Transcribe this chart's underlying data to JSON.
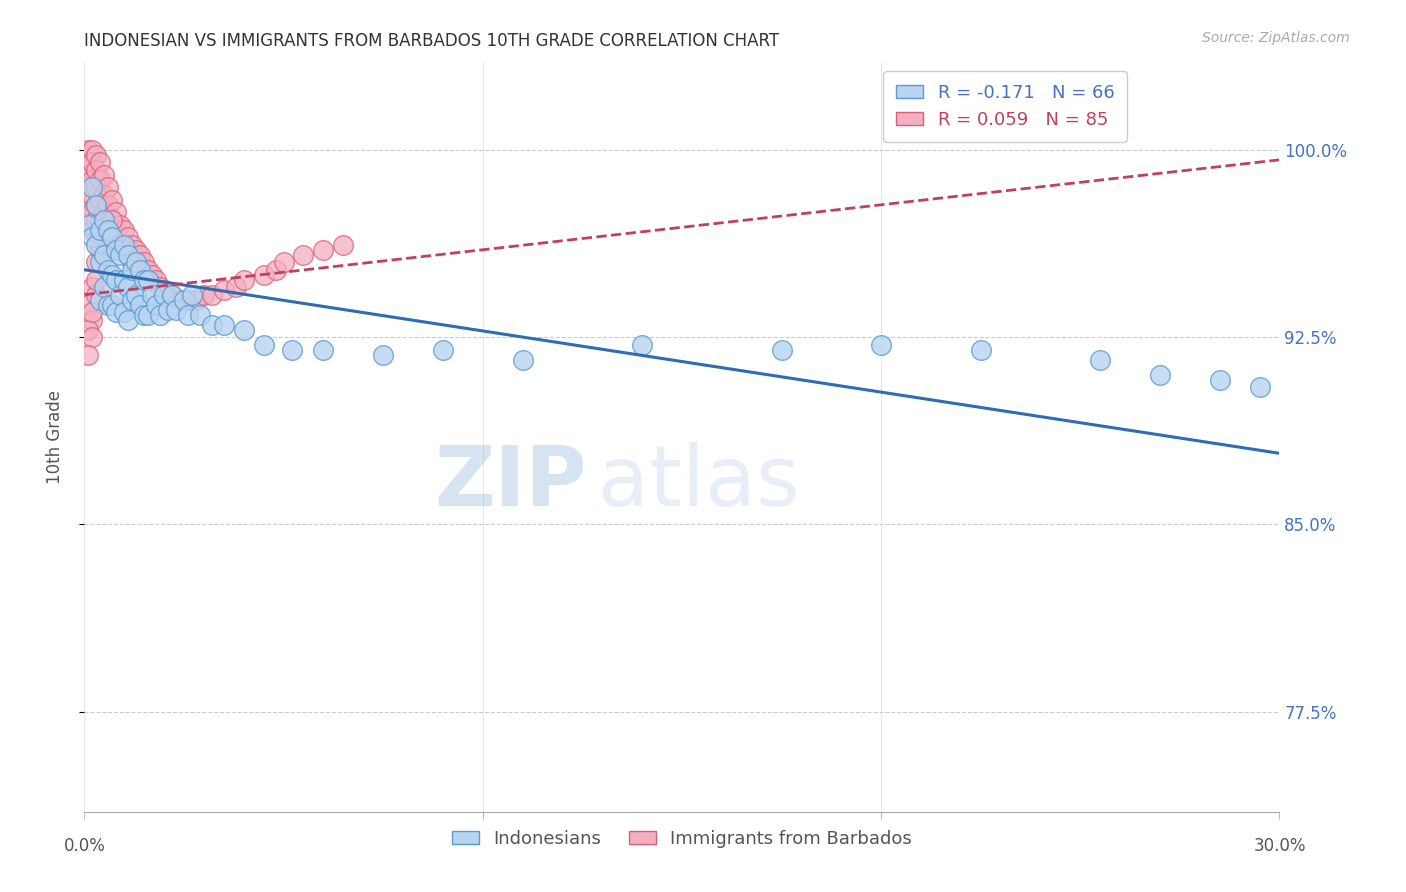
{
  "title": "INDONESIAN VS IMMIGRANTS FROM BARBADOS 10TH GRADE CORRELATION CHART",
  "source": "Source: ZipAtlas.com",
  "ylabel": "10th Grade",
  "yticks": [
    0.775,
    0.85,
    0.925,
    1.0
  ],
  "ytick_labels": [
    "77.5%",
    "85.0%",
    "92.5%",
    "100.0%"
  ],
  "xlim": [
    0.0,
    0.3
  ],
  "ylim": [
    0.735,
    1.035
  ],
  "watermark_top": "ZIP",
  "watermark_bot": "atlas",
  "legend_entries": [
    {
      "label": "R = -0.171   N = 66",
      "color": "#b8d4f0",
      "edge": "#5b9bd5"
    },
    {
      "label": "R = 0.059   N = 85",
      "color": "#f4afc0",
      "edge": "#d95f7a"
    }
  ],
  "legend_labels_bottom": [
    "Indonesians",
    "Immigrants from Barbados"
  ],
  "indonesians": {
    "face_color": "#b8d4f0",
    "edge_color": "#5b9bd5",
    "trend_color": "#2e6db4",
    "trend_intercept": 0.952,
    "trend_slope": -0.245,
    "x": [
      0.001,
      0.002,
      0.002,
      0.003,
      0.003,
      0.004,
      0.004,
      0.004,
      0.005,
      0.005,
      0.005,
      0.006,
      0.006,
      0.006,
      0.007,
      0.007,
      0.007,
      0.008,
      0.008,
      0.008,
      0.009,
      0.009,
      0.01,
      0.01,
      0.01,
      0.011,
      0.011,
      0.011,
      0.012,
      0.012,
      0.013,
      0.013,
      0.014,
      0.014,
      0.015,
      0.015,
      0.016,
      0.016,
      0.017,
      0.018,
      0.019,
      0.02,
      0.021,
      0.022,
      0.023,
      0.025,
      0.026,
      0.027,
      0.029,
      0.032,
      0.035,
      0.04,
      0.045,
      0.052,
      0.06,
      0.075,
      0.09,
      0.11,
      0.14,
      0.175,
      0.2,
      0.225,
      0.255,
      0.27,
      0.285,
      0.295
    ],
    "y": [
      0.97,
      0.985,
      0.965,
      0.978,
      0.962,
      0.968,
      0.955,
      0.94,
      0.972,
      0.958,
      0.945,
      0.968,
      0.952,
      0.938,
      0.965,
      0.95,
      0.938,
      0.96,
      0.948,
      0.935,
      0.958,
      0.942,
      0.962,
      0.948,
      0.935,
      0.958,
      0.945,
      0.932,
      0.952,
      0.94,
      0.955,
      0.942,
      0.952,
      0.938,
      0.948,
      0.934,
      0.948,
      0.934,
      0.942,
      0.938,
      0.934,
      0.942,
      0.936,
      0.942,
      0.936,
      0.94,
      0.934,
      0.942,
      0.934,
      0.93,
      0.93,
      0.928,
      0.922,
      0.92,
      0.92,
      0.918,
      0.92,
      0.916,
      0.922,
      0.92,
      0.922,
      0.92,
      0.916,
      0.91,
      0.908,
      0.905
    ]
  },
  "barbados": {
    "face_color": "#f4afc0",
    "edge_color": "#d95f7a",
    "trend_color": "#c04060",
    "trend_intercept": 0.942,
    "trend_slope": 0.18,
    "x": [
      0.001,
      0.001,
      0.001,
      0.001,
      0.001,
      0.001,
      0.001,
      0.001,
      0.002,
      0.002,
      0.002,
      0.002,
      0.002,
      0.002,
      0.003,
      0.003,
      0.003,
      0.003,
      0.003,
      0.004,
      0.004,
      0.004,
      0.004,
      0.005,
      0.005,
      0.005,
      0.005,
      0.006,
      0.006,
      0.006,
      0.007,
      0.007,
      0.007,
      0.008,
      0.008,
      0.009,
      0.009,
      0.01,
      0.01,
      0.011,
      0.011,
      0.012,
      0.012,
      0.013,
      0.013,
      0.014,
      0.015,
      0.015,
      0.016,
      0.017,
      0.018,
      0.019,
      0.02,
      0.022,
      0.024,
      0.026,
      0.028,
      0.03,
      0.032,
      0.035,
      0.038,
      0.04,
      0.045,
      0.048,
      0.05,
      0.055,
      0.06,
      0.065,
      0.003,
      0.004,
      0.002,
      0.001,
      0.002,
      0.003,
      0.001,
      0.002,
      0.002,
      0.003,
      0.001,
      0.004,
      0.005,
      0.006,
      0.007
    ],
    "y": [
      1.0,
      0.998,
      0.995,
      0.99,
      0.985,
      0.98,
      0.975,
      0.97,
      1.0,
      0.995,
      0.988,
      0.982,
      0.975,
      0.968,
      0.998,
      0.992,
      0.985,
      0.978,
      0.972,
      0.995,
      0.988,
      0.98,
      0.972,
      0.99,
      0.982,
      0.975,
      0.968,
      0.985,
      0.978,
      0.97,
      0.98,
      0.972,
      0.965,
      0.975,
      0.968,
      0.97,
      0.962,
      0.968,
      0.96,
      0.965,
      0.958,
      0.962,
      0.955,
      0.96,
      0.952,
      0.958,
      0.955,
      0.948,
      0.952,
      0.95,
      0.948,
      0.945,
      0.944,
      0.942,
      0.94,
      0.94,
      0.94,
      0.942,
      0.942,
      0.944,
      0.945,
      0.948,
      0.95,
      0.952,
      0.955,
      0.958,
      0.96,
      0.962,
      0.955,
      0.96,
      0.945,
      0.938,
      0.932,
      0.942,
      0.928,
      0.935,
      0.925,
      0.948,
      0.918,
      0.962,
      0.965,
      0.968,
      0.972
    ]
  },
  "title_fontsize": 12,
  "source_fontsize": 10,
  "axis_label_fontsize": 12,
  "tick_fontsize": 12,
  "legend_fontsize": 13,
  "watermark_fontsize": 60
}
